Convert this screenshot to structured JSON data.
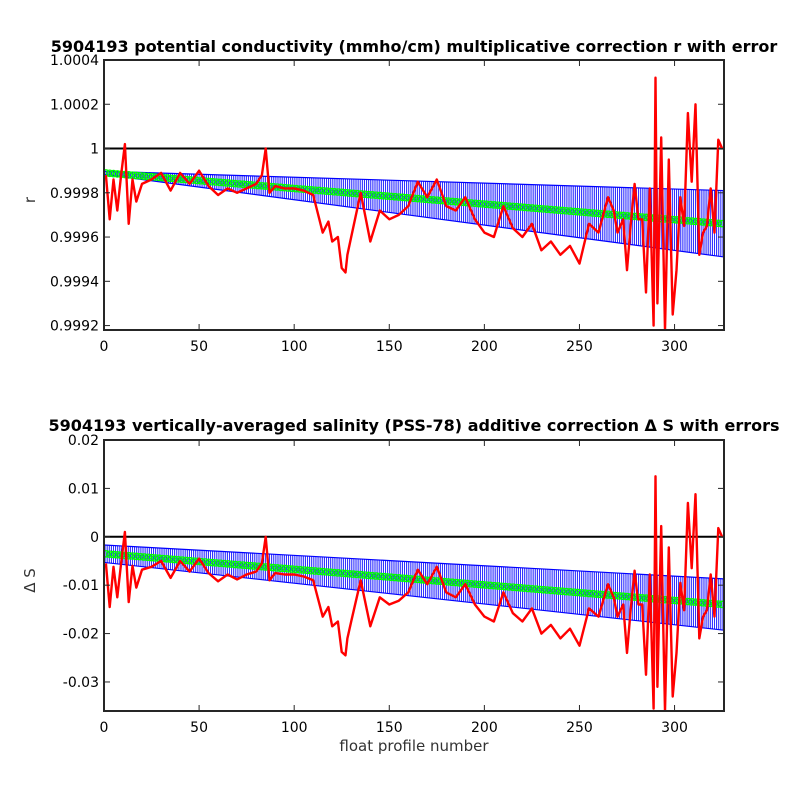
{
  "chart_data": [
    {
      "type": "line",
      "title": "5904193 potential conductivity (mmho/cm) multiplicative correction r with error",
      "xlabel": "",
      "ylabel": "r",
      "xlim": [
        0,
        326
      ],
      "ylim": [
        0.99918,
        1.0004
      ],
      "xticks": [
        0,
        50,
        100,
        150,
        200,
        250,
        300
      ],
      "xtick_labels": [
        "0",
        "50",
        "100",
        "150",
        "200",
        "250",
        "300"
      ],
      "yticks": [
        0.9992,
        0.9994,
        0.9996,
        0.9998,
        1.0,
        1.0002,
        1.0004
      ],
      "ytick_labels": [
        "0.9992",
        "0.9994",
        "0.9996",
        "0.9998",
        "1",
        "1.0002",
        "1.0004"
      ],
      "reference_line": 1.0,
      "fit": {
        "name": "fit",
        "x0": 0,
        "x1": 326,
        "y0": 0.99989,
        "y1": 0.99966
      },
      "error_band": {
        "x0": 0,
        "x1": 326,
        "half_width_start": 7e-06,
        "half_width_end": 0.00015
      },
      "series": [
        {
          "color": "#ff0000",
          "x": [
            1,
            3,
            5,
            7,
            9,
            11,
            13,
            15,
            17,
            20,
            25,
            30,
            35,
            40,
            45,
            50,
            55,
            60,
            65,
            70,
            75,
            80,
            83,
            85,
            87,
            90,
            95,
            100,
            105,
            110,
            115,
            118,
            120,
            123,
            125,
            127,
            128,
            130,
            135,
            140,
            145,
            150,
            155,
            160,
            165,
            170,
            175,
            180,
            185,
            190,
            195,
            200,
            205,
            210,
            215,
            220,
            225,
            230,
            235,
            240,
            245,
            250,
            255,
            260,
            265,
            268,
            270,
            273,
            275,
            277,
            279,
            281,
            283,
            285,
            287,
            289,
            290,
            291,
            293,
            295,
            297,
            299,
            301,
            303,
            305,
            307,
            309,
            311,
            313,
            315,
            317,
            319,
            321,
            323,
            325
          ],
          "y": [
            0.99988,
            0.99968,
            0.99986,
            0.99972,
            0.99988,
            1.00002,
            0.99966,
            0.99986,
            0.99976,
            0.99984,
            0.99986,
            0.99989,
            0.99981,
            0.99989,
            0.99984,
            0.9999,
            0.99983,
            0.99979,
            0.99982,
            0.9998,
            0.99982,
            0.99984,
            0.99988,
            1.0,
            0.9998,
            0.99983,
            0.99982,
            0.99982,
            0.99981,
            0.99979,
            0.99962,
            0.99967,
            0.99958,
            0.9996,
            0.99946,
            0.99944,
            0.99952,
            0.9996,
            0.9998,
            0.99958,
            0.99972,
            0.99968,
            0.9997,
            0.99974,
            0.99985,
            0.99978,
            0.99986,
            0.99974,
            0.99972,
            0.99978,
            0.99968,
            0.99962,
            0.9996,
            0.99974,
            0.99964,
            0.9996,
            0.99966,
            0.99954,
            0.99958,
            0.99952,
            0.99956,
            0.99948,
            0.99966,
            0.99962,
            0.99978,
            0.99972,
            0.99962,
            0.99968,
            0.99945,
            0.99966,
            0.99984,
            0.99968,
            0.99968,
            0.99935,
            0.99982,
            0.9992,
            1.00032,
            0.9993,
            1.00005,
            0.99918,
            0.99995,
            0.99925,
            0.99945,
            0.99978,
            0.99965,
            1.00016,
            0.99985,
            1.0002,
            0.99952,
            0.99962,
            0.99965,
            0.99982,
            0.99962,
            1.00004,
            1.0
          ]
        }
      ]
    },
    {
      "type": "line",
      "title": "5904193 vertically-averaged salinity (PSS-78) additive correction Δ S with errors",
      "xlabel": "float profile number",
      "ylabel": "Δ S",
      "xlim": [
        0,
        326
      ],
      "ylim": [
        -0.036,
        0.02
      ],
      "xticks": [
        0,
        50,
        100,
        150,
        200,
        250,
        300
      ],
      "xtick_labels": [
        "0",
        "50",
        "100",
        "150",
        "200",
        "250",
        "300"
      ],
      "yticks": [
        -0.03,
        -0.02,
        -0.01,
        0,
        0.01,
        0.02
      ],
      "ytick_labels": [
        "-0.03",
        "-0.02",
        "-0.01",
        "0",
        "0.01",
        "0.02"
      ],
      "reference_line": 0,
      "fit": {
        "name": "fit",
        "x0": 0,
        "x1": 326,
        "y0": -0.0035,
        "y1": -0.014
      },
      "error_band": {
        "x0": 0,
        "x1": 326,
        "half_width_start": 0.0018,
        "half_width_end": 0.0053
      },
      "series": [
        {
          "color": "#ff0000",
          "x": [
            1,
            3,
            5,
            7,
            9,
            11,
            13,
            15,
            17,
            20,
            25,
            30,
            35,
            40,
            45,
            50,
            55,
            60,
            65,
            70,
            75,
            80,
            83,
            85,
            87,
            90,
            95,
            100,
            105,
            110,
            115,
            118,
            120,
            123,
            125,
            127,
            128,
            130,
            135,
            140,
            145,
            150,
            155,
            160,
            165,
            170,
            175,
            180,
            185,
            190,
            195,
            200,
            205,
            210,
            215,
            220,
            225,
            230,
            235,
            240,
            245,
            250,
            255,
            260,
            265,
            268,
            270,
            273,
            275,
            277,
            279,
            281,
            283,
            285,
            287,
            289,
            290,
            291,
            293,
            295,
            297,
            299,
            301,
            303,
            305,
            307,
            309,
            311,
            313,
            315,
            317,
            319,
            321,
            323,
            325
          ],
          "y": [
            -0.0055,
            -0.0145,
            -0.0062,
            -0.0125,
            -0.0055,
            0.001,
            -0.0135,
            -0.006,
            -0.0105,
            -0.0068,
            -0.0062,
            -0.005,
            -0.0085,
            -0.005,
            -0.0072,
            -0.0045,
            -0.0075,
            -0.0092,
            -0.0078,
            -0.0088,
            -0.0078,
            -0.0072,
            -0.0055,
            0.0,
            -0.009,
            -0.0075,
            -0.0078,
            -0.0078,
            -0.0082,
            -0.009,
            -0.0165,
            -0.0145,
            -0.0185,
            -0.0175,
            -0.0238,
            -0.0245,
            -0.021,
            -0.0175,
            -0.009,
            -0.0185,
            -0.0125,
            -0.014,
            -0.0132,
            -0.0115,
            -0.0068,
            -0.0098,
            -0.0062,
            -0.0115,
            -0.0125,
            -0.0098,
            -0.014,
            -0.0165,
            -0.0175,
            -0.0115,
            -0.0158,
            -0.0175,
            -0.0148,
            -0.02,
            -0.0182,
            -0.021,
            -0.019,
            -0.0225,
            -0.0148,
            -0.0165,
            -0.0098,
            -0.0125,
            -0.0165,
            -0.014,
            -0.024,
            -0.0148,
            -0.007,
            -0.014,
            -0.014,
            -0.0285,
            -0.0078,
            -0.0355,
            0.0125,
            -0.031,
            0.0022,
            -0.036,
            -0.0022,
            -0.033,
            -0.024,
            -0.0095,
            -0.0152,
            0.007,
            -0.0065,
            0.0088,
            -0.021,
            -0.0165,
            -0.0152,
            -0.0078,
            -0.0165,
            0.0018,
            0.0
          ]
        }
      ]
    }
  ]
}
